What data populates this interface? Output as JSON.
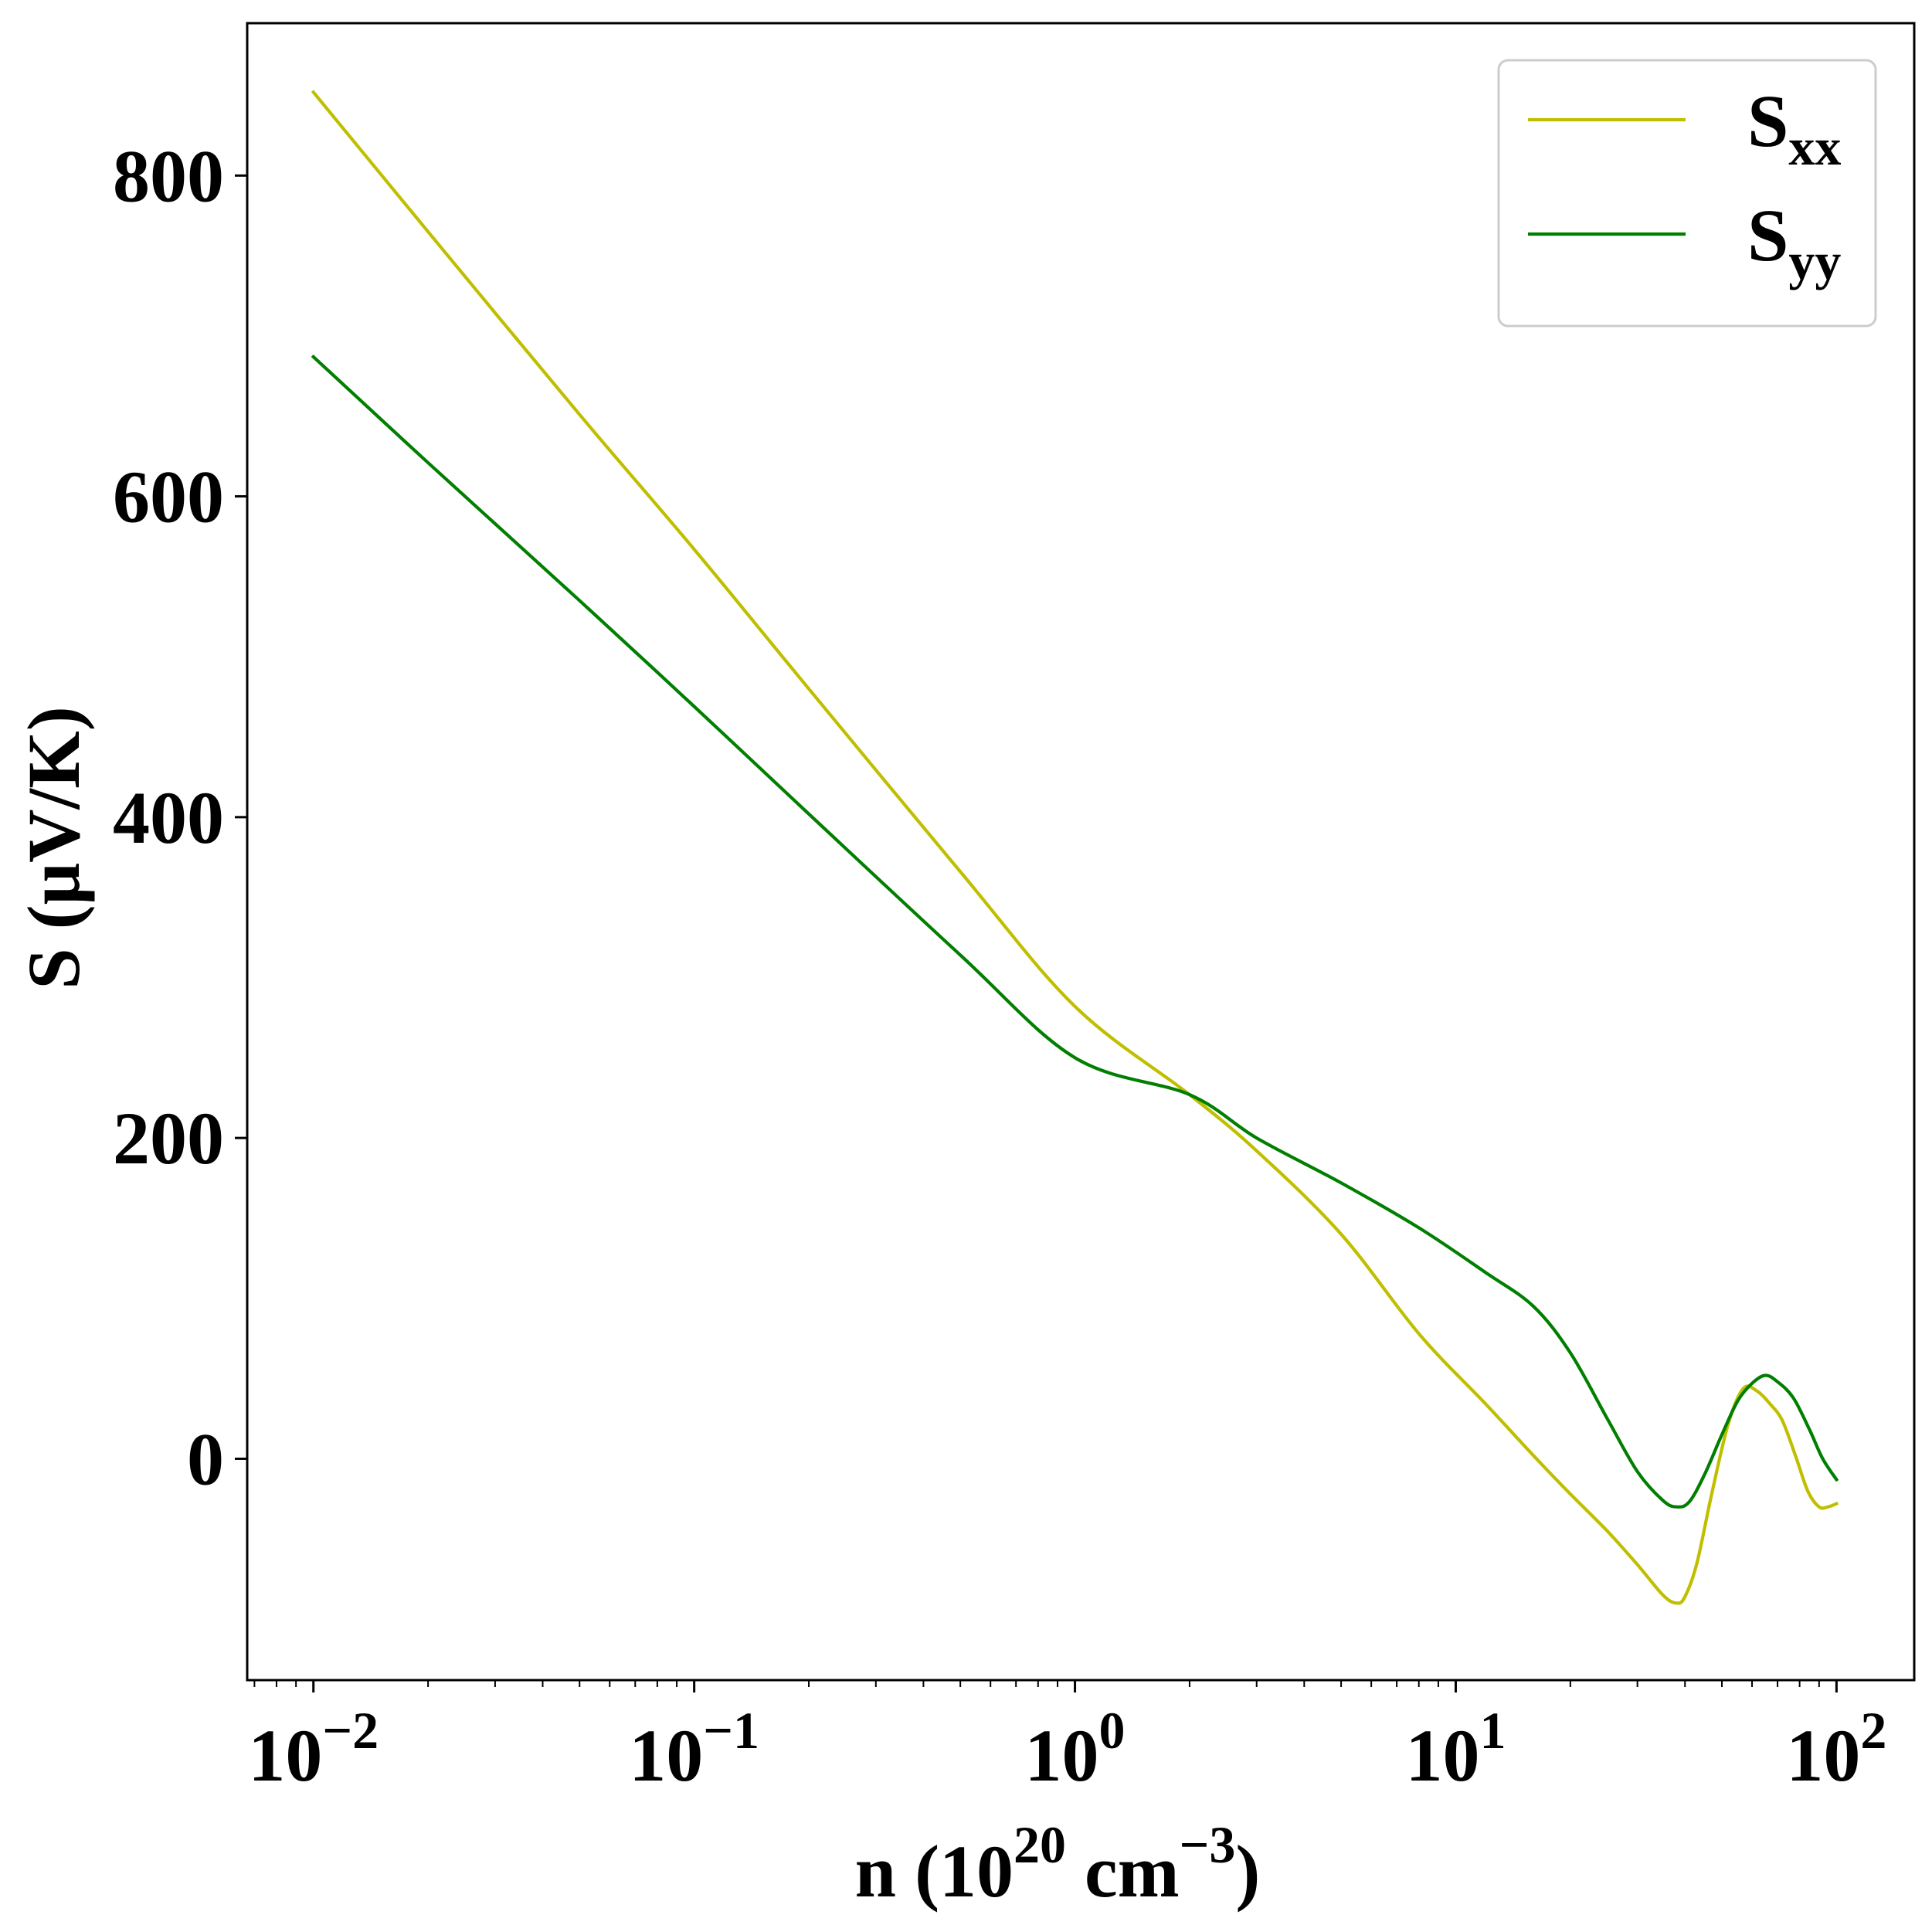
{
  "chart_data": {
    "type": "line",
    "title": "",
    "xlabel": {
      "base": "n (10",
      "sup1": "20",
      "mid": " cm",
      "sup2": "−3",
      "end": ")"
    },
    "ylabel": "S (μV/K)",
    "x_scale": "log",
    "xlim": [
      0.0067,
      160
    ],
    "ylim": [
      -138,
      895
    ],
    "x_ticks": [
      {
        "value": 0.01,
        "base": "10",
        "exp": "−2"
      },
      {
        "value": 0.1,
        "base": "10",
        "exp": "−1"
      },
      {
        "value": 1,
        "base": "10",
        "exp": "0"
      },
      {
        "value": 10,
        "base": "10",
        "exp": "1"
      },
      {
        "value": 100,
        "base": "10",
        "exp": "2"
      }
    ],
    "y_ticks": [
      0,
      200,
      400,
      600,
      800
    ],
    "grid": false,
    "legend_position": "top-right",
    "series": [
      {
        "name": "S_xx",
        "label_main": "S",
        "label_sub": "xx",
        "color": "#bfbf00",
        "points": [
          [
            0.01,
            852
          ],
          [
            0.02,
            765
          ],
          [
            0.05,
            651
          ],
          [
            0.1,
            567
          ],
          [
            0.2,
            480
          ],
          [
            0.5,
            366
          ],
          [
            1,
            282
          ],
          [
            2,
            227
          ],
          [
            3,
            192
          ],
          [
            5,
            140
          ],
          [
            8,
            78
          ],
          [
            12,
            34
          ],
          [
            16,
            2
          ],
          [
            20,
            -22
          ],
          [
            25,
            -45
          ],
          [
            30,
            -66
          ],
          [
            35,
            -85
          ],
          [
            38,
            -90
          ],
          [
            40,
            -86
          ],
          [
            43,
            -65
          ],
          [
            47,
            -22
          ],
          [
            52,
            22
          ],
          [
            57,
            44
          ],
          [
            62,
            42
          ],
          [
            67,
            34
          ],
          [
            72,
            24
          ],
          [
            78,
            2
          ],
          [
            84,
            -20
          ],
          [
            90,
            -30
          ],
          [
            95,
            -30
          ],
          [
            100,
            -28
          ]
        ]
      },
      {
        "name": "S_yy",
        "label_main": "S",
        "label_sub": "yy",
        "color": "#007f00",
        "points": [
          [
            0.01,
            687
          ],
          [
            0.02,
            621
          ],
          [
            0.05,
            535
          ],
          [
            0.1,
            469
          ],
          [
            0.2,
            402
          ],
          [
            0.5,
            314
          ],
          [
            1,
            250
          ],
          [
            2,
            227
          ],
          [
            3,
            200
          ],
          [
            5,
            172
          ],
          [
            8,
            144
          ],
          [
            12,
            116
          ],
          [
            16,
            95
          ],
          [
            20,
            66
          ],
          [
            25,
            25
          ],
          [
            30,
            -8
          ],
          [
            35,
            -26
          ],
          [
            38,
            -30
          ],
          [
            41,
            -27
          ],
          [
            45,
            -10
          ],
          [
            50,
            15
          ],
          [
            55,
            36
          ],
          [
            60,
            47
          ],
          [
            65,
            52
          ],
          [
            70,
            48
          ],
          [
            77,
            38
          ],
          [
            85,
            18
          ],
          [
            92,
            0
          ],
          [
            100,
            -13
          ]
        ]
      }
    ]
  }
}
